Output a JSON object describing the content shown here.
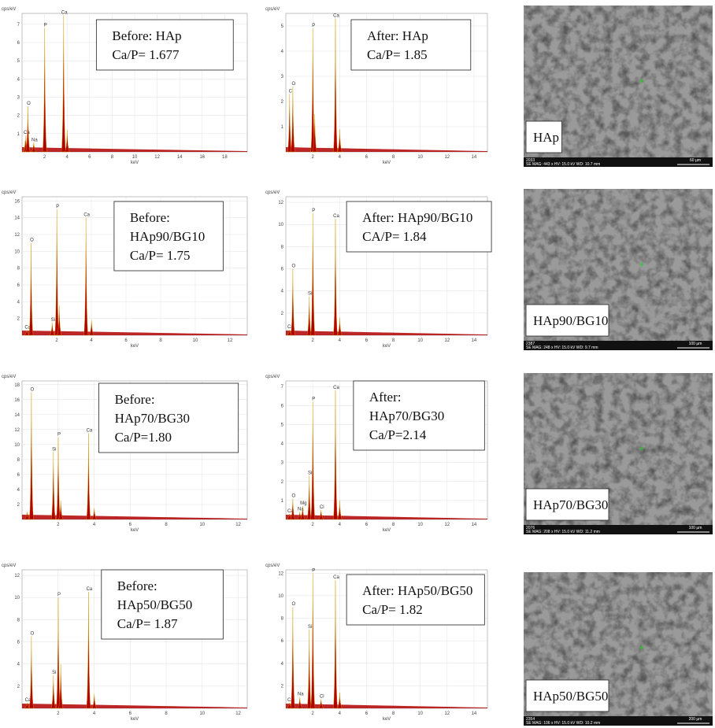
{
  "chart_data": [
    {
      "type": "spectrum",
      "annotation": [
        "Before: HAp",
        "Ca/P= 1.677"
      ],
      "y_label": "cps/eV",
      "x_label": "keV",
      "x": [
        0.28,
        0.34,
        0.52,
        1.04,
        2.01,
        3.69,
        4.01
      ],
      "values": [
        0.6,
        0.9,
        2.5,
        0.5,
        6.8,
        7.5,
        1.2
      ],
      "categories": [
        null,
        "Ca",
        "O",
        "Na",
        "P",
        "Ca",
        null
      ],
      "color": "#b00000",
      "xlim": [
        0,
        20
      ],
      "ylim": [
        0,
        7.6
      ],
      "xticks": [
        2,
        4,
        6,
        8,
        10,
        12,
        14,
        16,
        18
      ],
      "yticks": [
        1,
        2,
        3,
        4,
        5,
        6,
        7
      ],
      "grid": true
    },
    {
      "type": "spectrum",
      "annotation": [
        "After: HAp",
        "Ca/P= 1.85"
      ],
      "y_label": "cps/eV",
      "x_label": "keV",
      "x": [
        0.28,
        0.52,
        2.01,
        2.15,
        3.69,
        4.01
      ],
      "values": [
        2.3,
        2.6,
        4.9,
        1.5,
        5.3,
        0.9
      ],
      "categories": [
        "C",
        "O",
        "P",
        null,
        "Ca",
        null
      ],
      "color": "#b00000",
      "xlim": [
        0,
        15
      ],
      "ylim": [
        0,
        5.5
      ],
      "xticks": [
        2,
        4,
        6,
        8,
        10,
        12,
        14
      ],
      "yticks": [
        1,
        2,
        3,
        4,
        5
      ],
      "grid": true
    },
    {
      "type": "spectrum",
      "annotation": [
        "Before:",
        "HAp90/BG10",
        "Ca/P= 1.75"
      ],
      "y_label": "cps/eV",
      "x_label": "keV",
      "x": [
        0.28,
        0.52,
        1.74,
        2.01,
        2.15,
        3.69,
        4.01
      ],
      "values": [
        0.6,
        11,
        1.5,
        15,
        3.5,
        14,
        1.8
      ],
      "categories": [
        "Ca",
        "O",
        "Si",
        "P",
        null,
        "Ca",
        null
      ],
      "color": "#b00000",
      "xlim": [
        0,
        13
      ],
      "ylim": [
        0,
        16.5
      ],
      "xticks": [
        2,
        4,
        6,
        8,
        10,
        12
      ],
      "yticks": [
        2,
        4,
        6,
        8,
        10,
        12,
        14,
        16
      ],
      "grid": true
    },
    {
      "type": "spectrum",
      "annotation": [
        "After: HAp90/BG10",
        "CA/P= 1.84"
      ],
      "y_label": "cps/eV",
      "x_label": "keV",
      "x": [
        0.28,
        0.52,
        1.74,
        2.01,
        3.69,
        4.01
      ],
      "values": [
        0.5,
        6,
        3.5,
        11,
        10.5,
        1.6
      ],
      "categories": [
        "Ca",
        "O",
        "Si",
        "P",
        "Ca",
        null
      ],
      "color": "#b00000",
      "xlim": [
        0,
        15
      ],
      "ylim": [
        0,
        12.5
      ],
      "xticks": [
        2,
        4,
        6,
        8,
        10,
        12,
        14
      ],
      "yticks": [
        2,
        4,
        6,
        8,
        10,
        12
      ],
      "grid": true
    },
    {
      "type": "spectrum",
      "annotation": [
        "Before:",
        "HAp70/BG30",
        "Ca/P=1.80"
      ],
      "y_label": "cps/eV",
      "x_label": "keV",
      "x": [
        0.28,
        0.52,
        1.74,
        2.01,
        2.15,
        3.69,
        4.01
      ],
      "values": [
        1,
        17,
        9,
        11,
        2.5,
        11.5,
        1.5
      ],
      "categories": [
        null,
        "O",
        "Si",
        "P",
        null,
        "Ca",
        null
      ],
      "color": "#b00000",
      "xlim": [
        0,
        12.5
      ],
      "ylim": [
        0,
        18.5
      ],
      "xticks": [
        2,
        4,
        6,
        8,
        10,
        12
      ],
      "yticks": [
        2,
        4,
        6,
        8,
        10,
        12,
        14,
        16,
        18
      ],
      "grid": true
    },
    {
      "type": "spectrum",
      "annotation": [
        "After:",
        "HAp70/BG30",
        "Ca/P=2.14"
      ],
      "y_label": "cps/eV",
      "x_label": "keV",
      "x": [
        0.28,
        0.52,
        1.04,
        1.25,
        1.74,
        2.01,
        2.62,
        3.69,
        4.01
      ],
      "values": [
        0.3,
        1.1,
        0.4,
        0.7,
        2.3,
        6.2,
        0.5,
        6.8,
        1
      ],
      "categories": [
        "Ca",
        "O",
        "Na",
        "Mg",
        "Si",
        "P",
        "Cl",
        "Ca",
        null
      ],
      "color": "#b00000",
      "xlim": [
        0,
        15
      ],
      "ylim": [
        0,
        7.3
      ],
      "xticks": [
        2,
        4,
        6,
        8,
        10,
        12,
        14
      ],
      "yticks": [
        1,
        2,
        3,
        4,
        5,
        6,
        7
      ],
      "grid": true
    },
    {
      "type": "spectrum",
      "annotation": [
        "Before:",
        "HAp50/BG50",
        "Ca/P= 1.87"
      ],
      "y_label": "cps/eV",
      "x_label": "keV",
      "x": [
        0.28,
        0.52,
        1.74,
        2.01,
        2.15,
        3.69,
        4.01
      ],
      "values": [
        0.5,
        6.5,
        3,
        10,
        4,
        10.5,
        1.3
      ],
      "categories": [
        "Ca",
        "O",
        "Si",
        "P",
        null,
        "Ca",
        null
      ],
      "color": "#b00000",
      "xlim": [
        0,
        12.5
      ],
      "ylim": [
        0,
        12.5
      ],
      "xticks": [
        2,
        4,
        6,
        8,
        10,
        12
      ],
      "yticks": [
        2,
        4,
        6,
        8,
        10,
        12
      ],
      "grid": true
    },
    {
      "type": "spectrum",
      "annotation": [
        "After: HAp50/BG50",
        "Ca/P= 1.82"
      ],
      "y_label": "cps/eV",
      "x_label": "keV",
      "x": [
        0.28,
        0.52,
        1.04,
        1.74,
        2.01,
        2.62,
        3.69,
        4.01
      ],
      "values": [
        0.5,
        9,
        1,
        7,
        12,
        0.8,
        11.4,
        1.4
      ],
      "categories": [
        "Ca",
        "O",
        "Na",
        "Si",
        "P",
        "Cl",
        "Ca",
        null
      ],
      "color": "#b00000",
      "xlim": [
        0,
        15
      ],
      "ylim": [
        0,
        12.3
      ],
      "xticks": [
        2,
        4,
        6,
        8,
        10,
        12,
        14
      ],
      "yticks": [
        2,
        4,
        6,
        8,
        10,
        12
      ],
      "grid": true
    }
  ],
  "sem_images": [
    {
      "label": "HAp",
      "id": "2033",
      "info": "SE  MAG: 443 x  HV: 15.0 kV  WD: 10.7 mm",
      "scale": "60 µm"
    },
    {
      "label": "HAp90/BG10",
      "id": "2387",
      "info": "SE  MAG: 248 x  HV: 15.0 kV  WD: 9.7 mm",
      "scale": "100 µm"
    },
    {
      "label": "HAp70/BG30",
      "id": "2076",
      "info": "SE  MAG: 208 x  HV: 15.0 kV  WD: 11.2 mm",
      "scale": "100 µm"
    },
    {
      "label": "HAp50/BG50",
      "id": "2354",
      "info": "SE  MAG: 106 x  HV: 15.0 kV  WD: 10.2 mm",
      "scale": "200 µm"
    }
  ]
}
